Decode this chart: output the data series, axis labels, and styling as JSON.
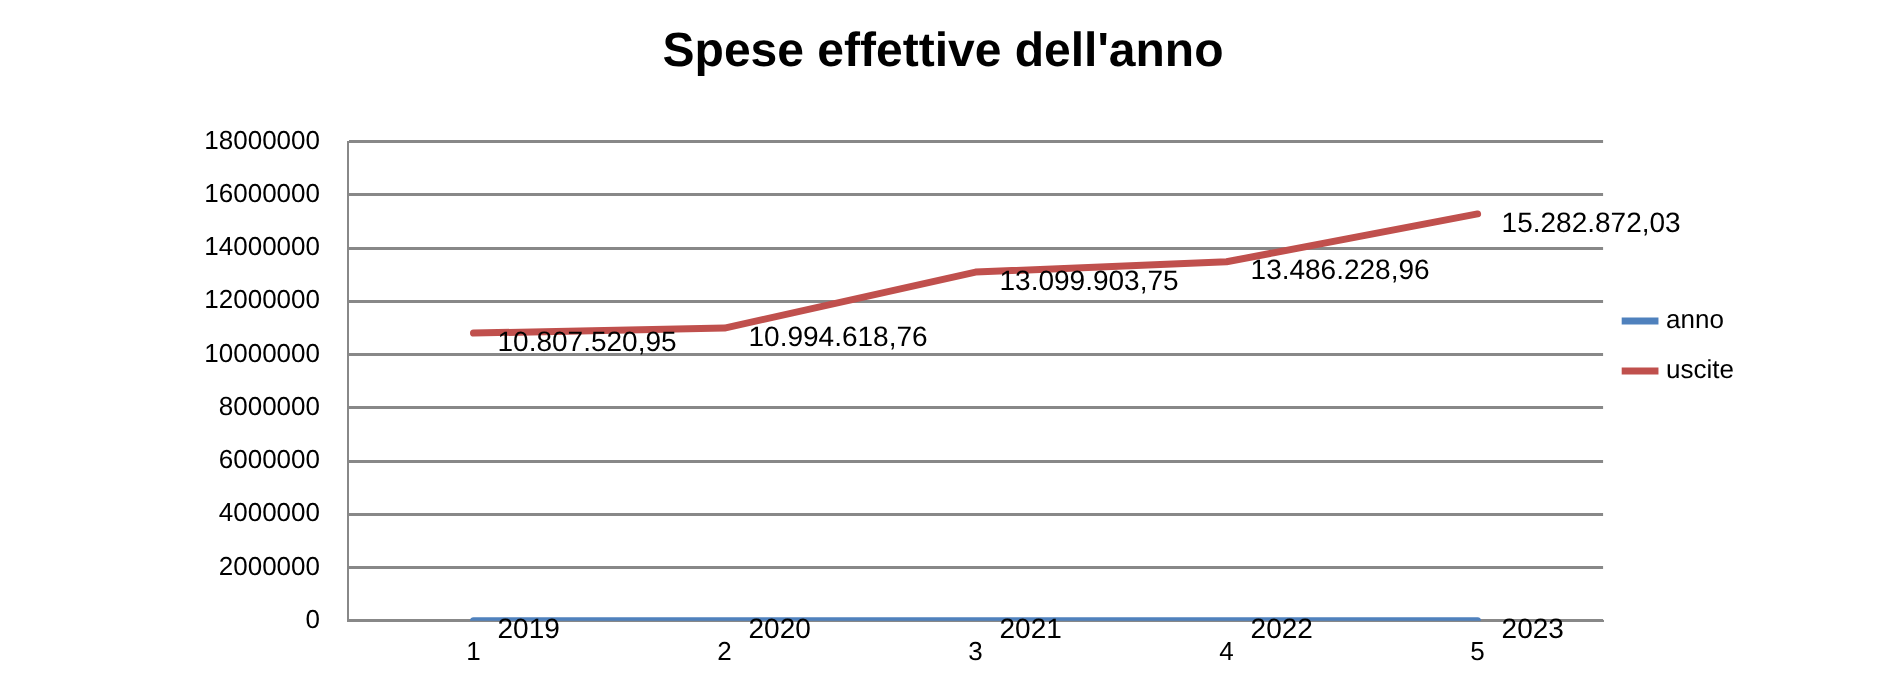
{
  "chart_data": {
    "type": "line",
    "title": "Spese effettive dell'anno",
    "categories": [
      "1",
      "2",
      "3",
      "4",
      "5"
    ],
    "series": [
      {
        "name": "anno",
        "color": "#4f81bd",
        "values": [
          2019,
          2020,
          2021,
          2022,
          2023
        ],
        "value_labels": [
          "2019",
          "2020",
          "2021",
          "2022",
          "2023"
        ]
      },
      {
        "name": "uscite",
        "color": "#c0504d",
        "values": [
          10807520.95,
          10994618.76,
          13099903.75,
          13486228.96,
          15282872.03
        ],
        "value_labels": [
          "10.807.520,95",
          "10.994.618,76",
          "13.099.903,75",
          "13.486.228,96",
          "15.282.872,03"
        ]
      }
    ],
    "ylim": [
      0,
      18000000
    ],
    "yticks": [
      0,
      2000000,
      4000000,
      6000000,
      8000000,
      10000000,
      12000000,
      14000000,
      16000000,
      18000000
    ],
    "grid": "y",
    "legend": "right",
    "marker": "none",
    "line_style": "solid"
  }
}
